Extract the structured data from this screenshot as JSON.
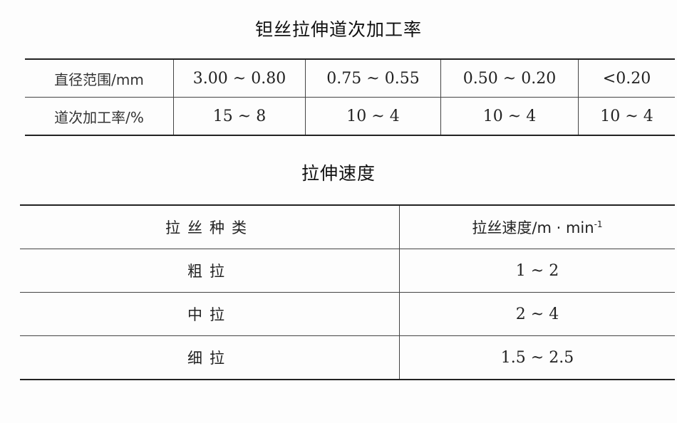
{
  "table1": {
    "title": "钽丝拉伸道次加工率",
    "rows": [
      {
        "label": "直径范围/mm",
        "cells": [
          "3.00 ~ 0.80",
          "0.75 ~ 0.55",
          "0.50 ~ 0.20",
          "<0.20"
        ]
      },
      {
        "label": "道次加工率/%",
        "cells": [
          "15 ~ 8",
          "10 ~ 4",
          "10 ~ 4",
          "10 ~ 4"
        ]
      }
    ]
  },
  "table2": {
    "title": "拉伸速度",
    "header": {
      "col1": "拉丝种类",
      "col2": "拉丝速度/m · min",
      "col2_sup": "-1"
    },
    "rows": [
      {
        "type": "粗拉",
        "speed": "1 ~ 2"
      },
      {
        "type": "中拉",
        "speed": "2 ~ 4"
      },
      {
        "type": "细拉",
        "speed": "1.5 ~ 2.5"
      }
    ]
  }
}
